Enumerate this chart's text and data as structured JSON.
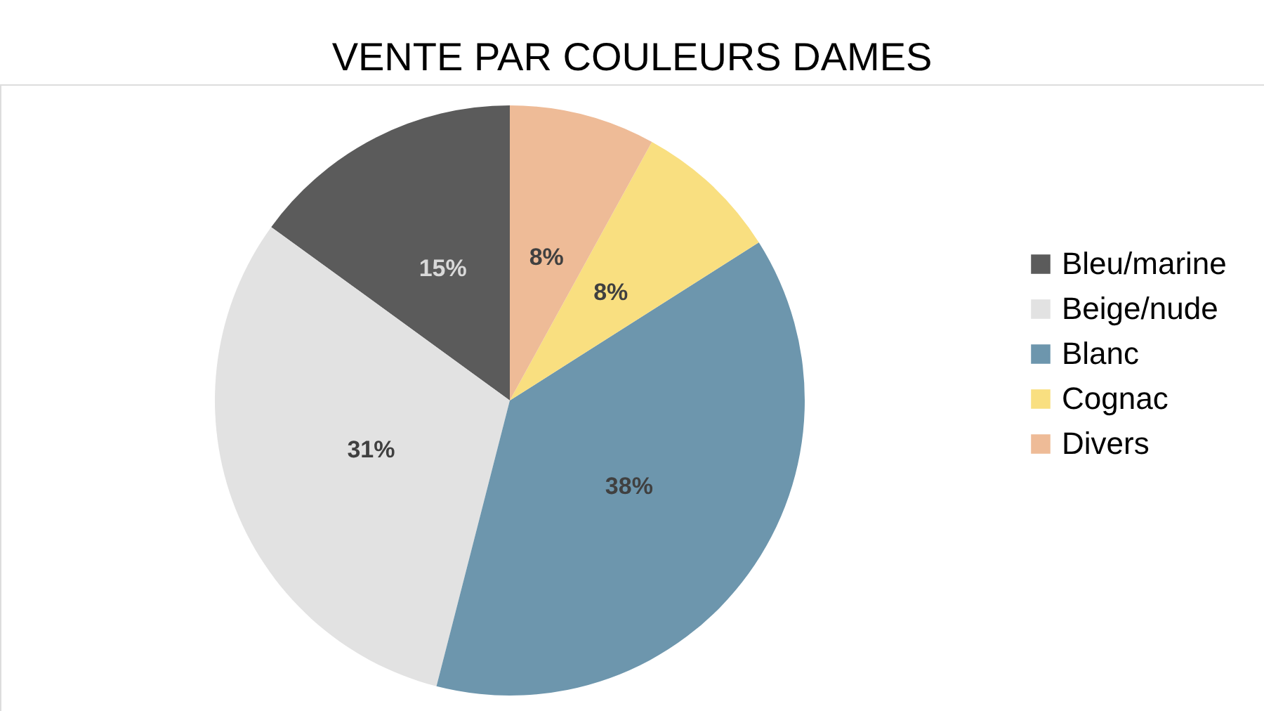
{
  "chart_data": {
    "type": "pie",
    "title": "VENTE PAR COULEURS DAMES",
    "categories": [
      "Bleu/marine",
      "Beige/nude",
      "Blanc",
      "Cognac",
      "Divers"
    ],
    "values": [
      15,
      31,
      38,
      8,
      8
    ],
    "colors": [
      "#5b5b5b",
      "#e2e2e2",
      "#6d96ad",
      "#f9df80",
      "#eebb97"
    ],
    "value_labels": [
      "15%",
      "31%",
      "38%",
      "8%",
      "8%"
    ],
    "legend": "right"
  }
}
